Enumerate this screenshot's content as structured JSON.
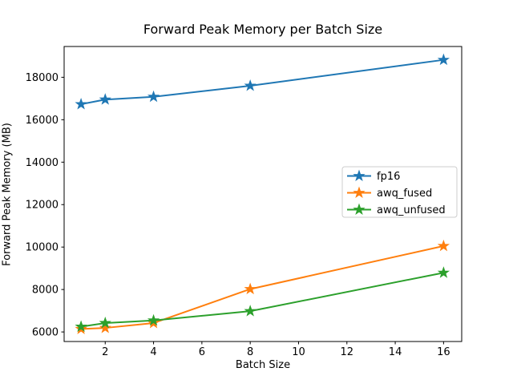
{
  "chart_data": {
    "type": "line",
    "title": "Forward Peak Memory per Batch Size",
    "xlabel": "Batch Size",
    "ylabel": "Forward Peak Memory (MB)",
    "x": [
      1,
      2,
      4,
      8,
      16
    ],
    "series": [
      {
        "name": "fp16",
        "color": "#1f77b4",
        "values": [
          16730,
          16950,
          17080,
          17600,
          18820
        ]
      },
      {
        "name": "awq_fused",
        "color": "#ff7f0e",
        "values": [
          6140,
          6190,
          6420,
          8020,
          10050
        ]
      },
      {
        "name": "awq_unfused",
        "color": "#2ca02c",
        "values": [
          6250,
          6420,
          6540,
          6980,
          8790
        ]
      }
    ],
    "marker": "star",
    "xticks": [
      2,
      4,
      6,
      8,
      10,
      12,
      14,
      16
    ],
    "yticks": [
      6000,
      8000,
      10000,
      12000,
      14000,
      16000,
      18000
    ],
    "xlim": [
      0.3,
      16.75
    ],
    "ylim": [
      5550,
      19450
    ],
    "grid": false,
    "legend_position": "center right",
    "legend_border_color": "#cccccc",
    "axis_color": "#000000",
    "background_color": "#ffffff"
  }
}
